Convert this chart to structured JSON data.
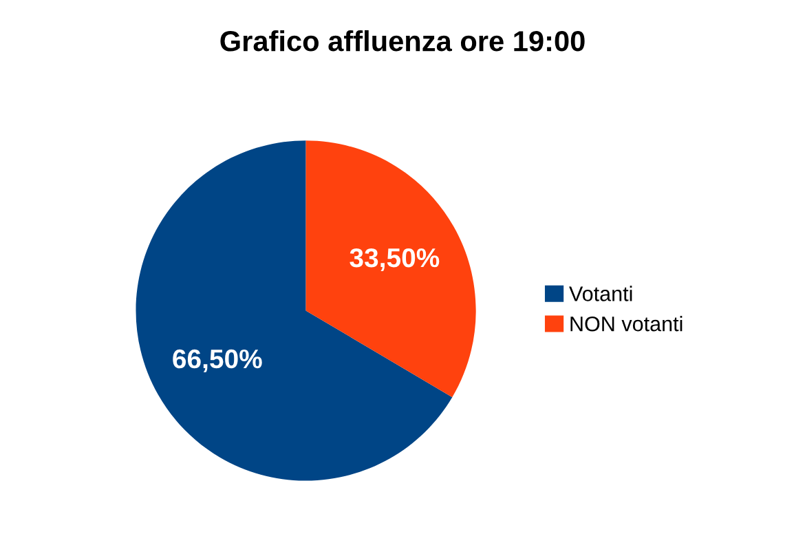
{
  "chart_data": {
    "type": "pie",
    "title": "Grafico affluenza ore 19:00",
    "categories": [
      "Votanti",
      "NON votanti"
    ],
    "values": [
      66.5,
      33.5
    ],
    "colors": [
      "#004586",
      "#ff420e"
    ],
    "value_labels": [
      "66,50%",
      "33,50%"
    ],
    "legend": "right"
  }
}
